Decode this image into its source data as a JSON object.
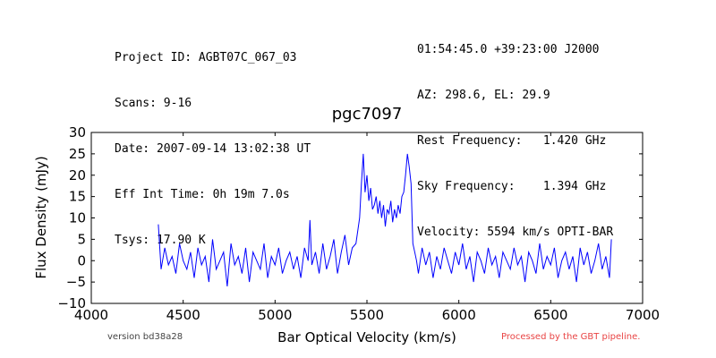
{
  "header": {
    "left": [
      "Project ID: AGBT07C_067_03",
      "Scans: 9-16",
      "Date: 2007-09-14 13:02:38 UT",
      "Eff Int Time: 0h 19m 7.0s",
      "Tsys: 17.90 K"
    ],
    "right": [
      "01:54:45.0 +39:23:00 J2000",
      "AZ: 298.6, EL: 29.9",
      "Rest Frequency:   1.420 GHz",
      "Sky Frequency:    1.394 GHz",
      "Velocity: 5594 km/s OPTI-BAR"
    ]
  },
  "footer": {
    "version": "version bd38a28",
    "pipeline": "Processed by the GBT pipeline."
  },
  "chart_data": {
    "type": "line",
    "title": "pgc7097",
    "xlabel": "Bar Optical Velocity (km/s)",
    "ylabel": "Flux Density (mJy)",
    "xlim": [
      4000,
      7000
    ],
    "ylim": [
      -10,
      30
    ],
    "xticks": [
      4000,
      4500,
      5000,
      5500,
      6000,
      6500,
      7000
    ],
    "yticks": [
      -10,
      -5,
      0,
      5,
      10,
      15,
      20,
      25,
      30
    ],
    "grid": false,
    "line_color": "#0000ff",
    "series": [
      {
        "x": [
          4365,
          4380,
          4400,
          4420,
          4440,
          4460,
          4480,
          4500,
          4520,
          4540,
          4560,
          4580,
          4600,
          4620,
          4640,
          4660,
          4680,
          4700,
          4720,
          4740,
          4760,
          4780,
          4800,
          4820,
          4840,
          4860,
          4880,
          4900,
          4920,
          4940,
          4960,
          4980,
          5000,
          5020,
          5040,
          5060,
          5080,
          5100,
          5120,
          5140,
          5160,
          5180,
          5190,
          5200,
          5220,
          5240,
          5260,
          5280,
          5300,
          5320,
          5340,
          5360,
          5380,
          5400,
          5420,
          5440,
          5460,
          5470,
          5480,
          5490,
          5500,
          5510,
          5520,
          5530,
          5540,
          5550,
          5560,
          5570,
          5580,
          5590,
          5600,
          5610,
          5620,
          5630,
          5640,
          5650,
          5660,
          5670,
          5680,
          5690,
          5700,
          5710,
          5720,
          5730,
          5740,
          5750,
          5760,
          5770,
          5780,
          5800,
          5820,
          5840,
          5860,
          5880,
          5900,
          5920,
          5940,
          5960,
          5980,
          6000,
          6020,
          6040,
          6060,
          6080,
          6100,
          6120,
          6140,
          6160,
          6180,
          6200,
          6220,
          6240,
          6260,
          6280,
          6300,
          6320,
          6340,
          6360,
          6380,
          6400,
          6420,
          6440,
          6460,
          6480,
          6500,
          6520,
          6540,
          6560,
          6580,
          6600,
          6620,
          6640,
          6660,
          6680,
          6700,
          6720,
          6740,
          6760,
          6780,
          6800,
          6820,
          6830
        ],
        "y": [
          8.5,
          -2,
          3,
          -1,
          1,
          -3,
          4,
          0,
          -2,
          2,
          -4,
          3,
          -1,
          1,
          -5,
          5,
          -2,
          0,
          2,
          -6,
          4,
          -1,
          1,
          -3,
          3,
          -5,
          2,
          0,
          -2,
          4,
          -4,
          1,
          -1,
          3,
          -3,
          0,
          2,
          -2,
          1,
          -4,
          3,
          0,
          9.5,
          -1,
          2,
          -3,
          4,
          -2,
          1,
          5,
          -3,
          2,
          6,
          -1,
          3,
          4,
          10,
          18,
          25,
          16,
          20,
          14,
          17,
          12,
          13,
          15,
          11,
          14,
          10,
          13,
          8,
          12,
          11,
          14,
          9,
          12,
          10,
          13,
          11,
          15,
          16,
          20,
          25,
          22,
          18,
          4,
          2,
          0,
          -3,
          3,
          -1,
          2,
          -4,
          1,
          -2,
          3,
          0,
          -3,
          2,
          -1,
          4,
          -2,
          1,
          -5,
          2,
          0,
          -3,
          3,
          -1,
          1,
          -4,
          2,
          0,
          -2,
          3,
          -1,
          1,
          -5,
          2,
          0,
          -3,
          4,
          -2,
          1,
          -1,
          3,
          -4,
          0,
          2,
          -2,
          1,
          -5,
          3,
          -1,
          2,
          -3,
          0,
          4,
          -2,
          1,
          -4,
          5
        ]
      }
    ]
  }
}
